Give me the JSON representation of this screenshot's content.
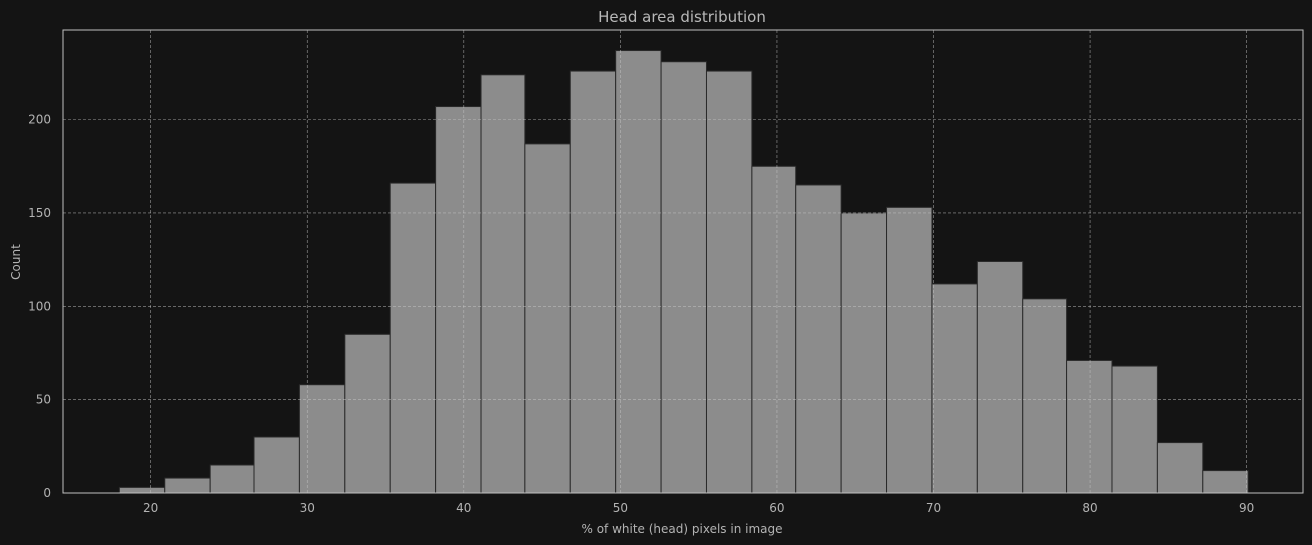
{
  "chart_data": {
    "type": "bar",
    "title": "Head area distribution",
    "xlabel": "% of white (head) pixels in image",
    "ylabel": "Count",
    "xlim": [
      14.4,
      93.6
    ],
    "ylim": [
      0,
      248
    ],
    "xticks": [
      20,
      30,
      40,
      50,
      60,
      70,
      80,
      90
    ],
    "yticks": [
      0,
      50,
      100,
      150,
      200
    ],
    "grid": true,
    "bins": [
      {
        "x0": 18.0,
        "x1": 20.9,
        "count": 3
      },
      {
        "x0": 20.9,
        "x1": 23.8,
        "count": 8
      },
      {
        "x0": 23.8,
        "x1": 26.6,
        "count": 15
      },
      {
        "x0": 26.6,
        "x1": 29.5,
        "count": 30
      },
      {
        "x0": 29.5,
        "x1": 32.4,
        "count": 58
      },
      {
        "x0": 32.4,
        "x1": 35.3,
        "count": 85
      },
      {
        "x0": 35.3,
        "x1": 38.2,
        "count": 166
      },
      {
        "x0": 38.2,
        "x1": 41.1,
        "count": 207
      },
      {
        "x0": 41.1,
        "x1": 43.9,
        "count": 224
      },
      {
        "x0": 43.9,
        "x1": 46.8,
        "count": 187
      },
      {
        "x0": 46.8,
        "x1": 49.7,
        "count": 226
      },
      {
        "x0": 49.7,
        "x1": 52.6,
        "count": 237
      },
      {
        "x0": 52.6,
        "x1": 55.5,
        "count": 231
      },
      {
        "x0": 55.5,
        "x1": 58.4,
        "count": 226
      },
      {
        "x0": 58.4,
        "x1": 61.2,
        "count": 175
      },
      {
        "x0": 61.2,
        "x1": 64.1,
        "count": 165
      },
      {
        "x0": 64.1,
        "x1": 67.0,
        "count": 150
      },
      {
        "x0": 67.0,
        "x1": 69.9,
        "count": 153
      },
      {
        "x0": 69.9,
        "x1": 72.8,
        "count": 112
      },
      {
        "x0": 72.8,
        "x1": 75.7,
        "count": 124
      },
      {
        "x0": 75.7,
        "x1": 78.5,
        "count": 104
      },
      {
        "x0": 78.5,
        "x1": 81.4,
        "count": 71
      },
      {
        "x0": 81.4,
        "x1": 84.3,
        "count": 68
      },
      {
        "x0": 84.3,
        "x1": 87.2,
        "count": 27
      },
      {
        "x0": 87.2,
        "x1": 90.1,
        "count": 12
      }
    ]
  }
}
